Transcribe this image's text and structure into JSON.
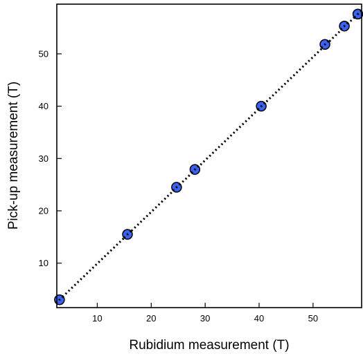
{
  "chart_data": {
    "type": "scatter",
    "title": "",
    "xlabel": "Rubidium measurement (T)",
    "ylabel": "Pick-up measurement (T)",
    "xlim": [
      2.5,
      59
    ],
    "ylim": [
      1.5,
      59.5
    ],
    "xticks": [
      10,
      20,
      30,
      40,
      50
    ],
    "yticks": [
      10,
      20,
      30,
      40,
      50
    ],
    "grid": false,
    "legend": "none",
    "series": [
      {
        "points": [
          {
            "x": 3.0,
            "y": 3.0
          },
          {
            "x": 15.6,
            "y": 15.5
          },
          {
            "x": 24.7,
            "y": 24.5
          },
          {
            "x": 28.1,
            "y": 27.9
          },
          {
            "x": 40.4,
            "y": 40.0
          },
          {
            "x": 52.2,
            "y": 51.8
          },
          {
            "x": 55.8,
            "y": 55.3
          },
          {
            "x": 58.3,
            "y": 57.6
          }
        ],
        "marker_color": "#3a62f0",
        "marker_edge_color": "#000000"
      }
    ],
    "fit_line": {
      "style": "dotted",
      "color": "#000000",
      "points": [
        {
          "x": 3.0,
          "y": 3.0
        },
        {
          "x": 58.3,
          "y": 57.6
        }
      ]
    }
  }
}
